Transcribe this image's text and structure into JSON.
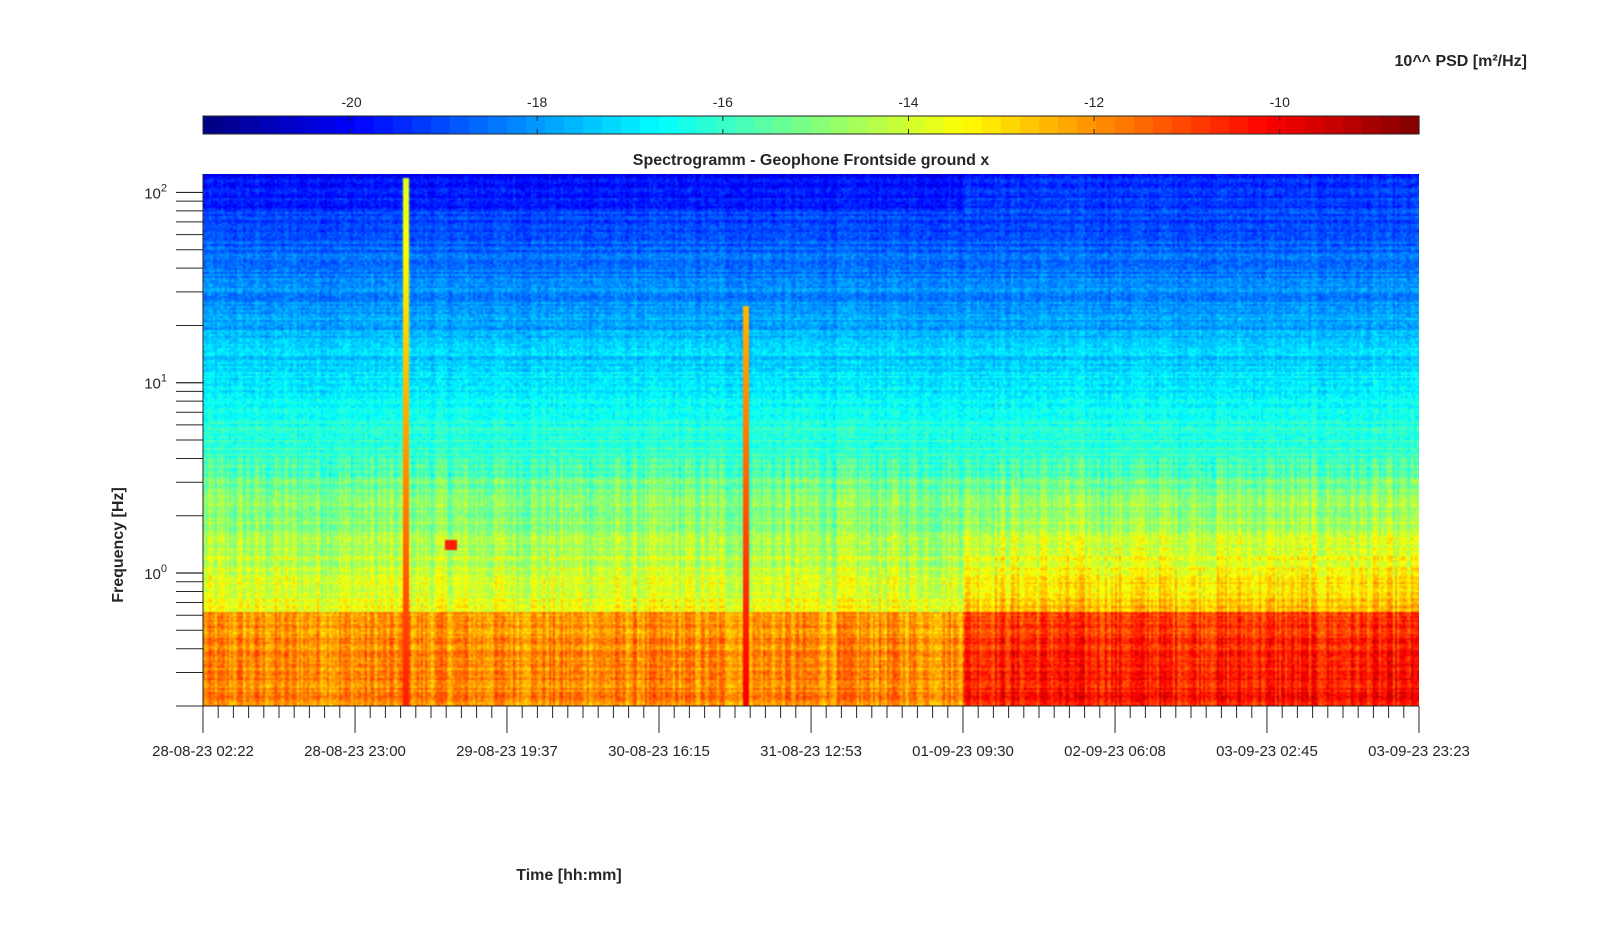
{
  "chart_data": {
    "type": "heatmap",
    "title": "Spectrogramm - Geophone Frontside ground x",
    "xlabel": "Time [hh:mm]",
    "ylabel": "Frequency [Hz]",
    "x_ticks": [
      "28-08-23 02:22",
      "28-08-23 23:00",
      "29-08-23 19:37",
      "30-08-23 16:15",
      "31-08-23 12:53",
      "01-09-23 09:30",
      "02-09-23 06:08",
      "03-09-23 02:45",
      "03-09-23 23:23"
    ],
    "xlim": [
      "28-08-23 02:22",
      "03-09-23 23:23"
    ],
    "y_scale": "log",
    "y_ticks": [
      {
        "base": "10",
        "exp": "0",
        "value": 1
      },
      {
        "base": "10",
        "exp": "1",
        "value": 10
      },
      {
        "base": "10",
        "exp": "2",
        "value": 100
      }
    ],
    "ylim": [
      0.2,
      125
    ],
    "colorbar": {
      "label": "10^^ PSD [m²/Hz]",
      "scale": "jet",
      "ticks": [
        "-20",
        "-18",
        "-16",
        "-14",
        "-12",
        "-10"
      ],
      "tick_values": [
        -20,
        -18,
        -16,
        -14,
        -12,
        -10
      ],
      "range": [
        -21.6,
        -8.5
      ],
      "levels": 64
    },
    "segments": [
      {
        "from": "28-08-23 02:22",
        "to": "01-09-23 09:30",
        "low_freq_level": -11.8,
        "high_freq_level": -19.6
      },
      {
        "from": "01-09-23 09:30",
        "to": "03-09-23 23:23",
        "low_freq_level": -10.3,
        "high_freq_level": -19.2
      }
    ],
    "events": [
      {
        "time": "29-08-23 06:00",
        "freq_top": 120,
        "level": -10.5
      },
      {
        "time": "31-08-23 04:00",
        "freq_top": 25,
        "level": -10.0
      },
      {
        "time": "29-08-23 12:00",
        "freq": 1.4,
        "level": -10.5
      }
    ],
    "legend": "colorbar-top",
    "grid": false
  }
}
